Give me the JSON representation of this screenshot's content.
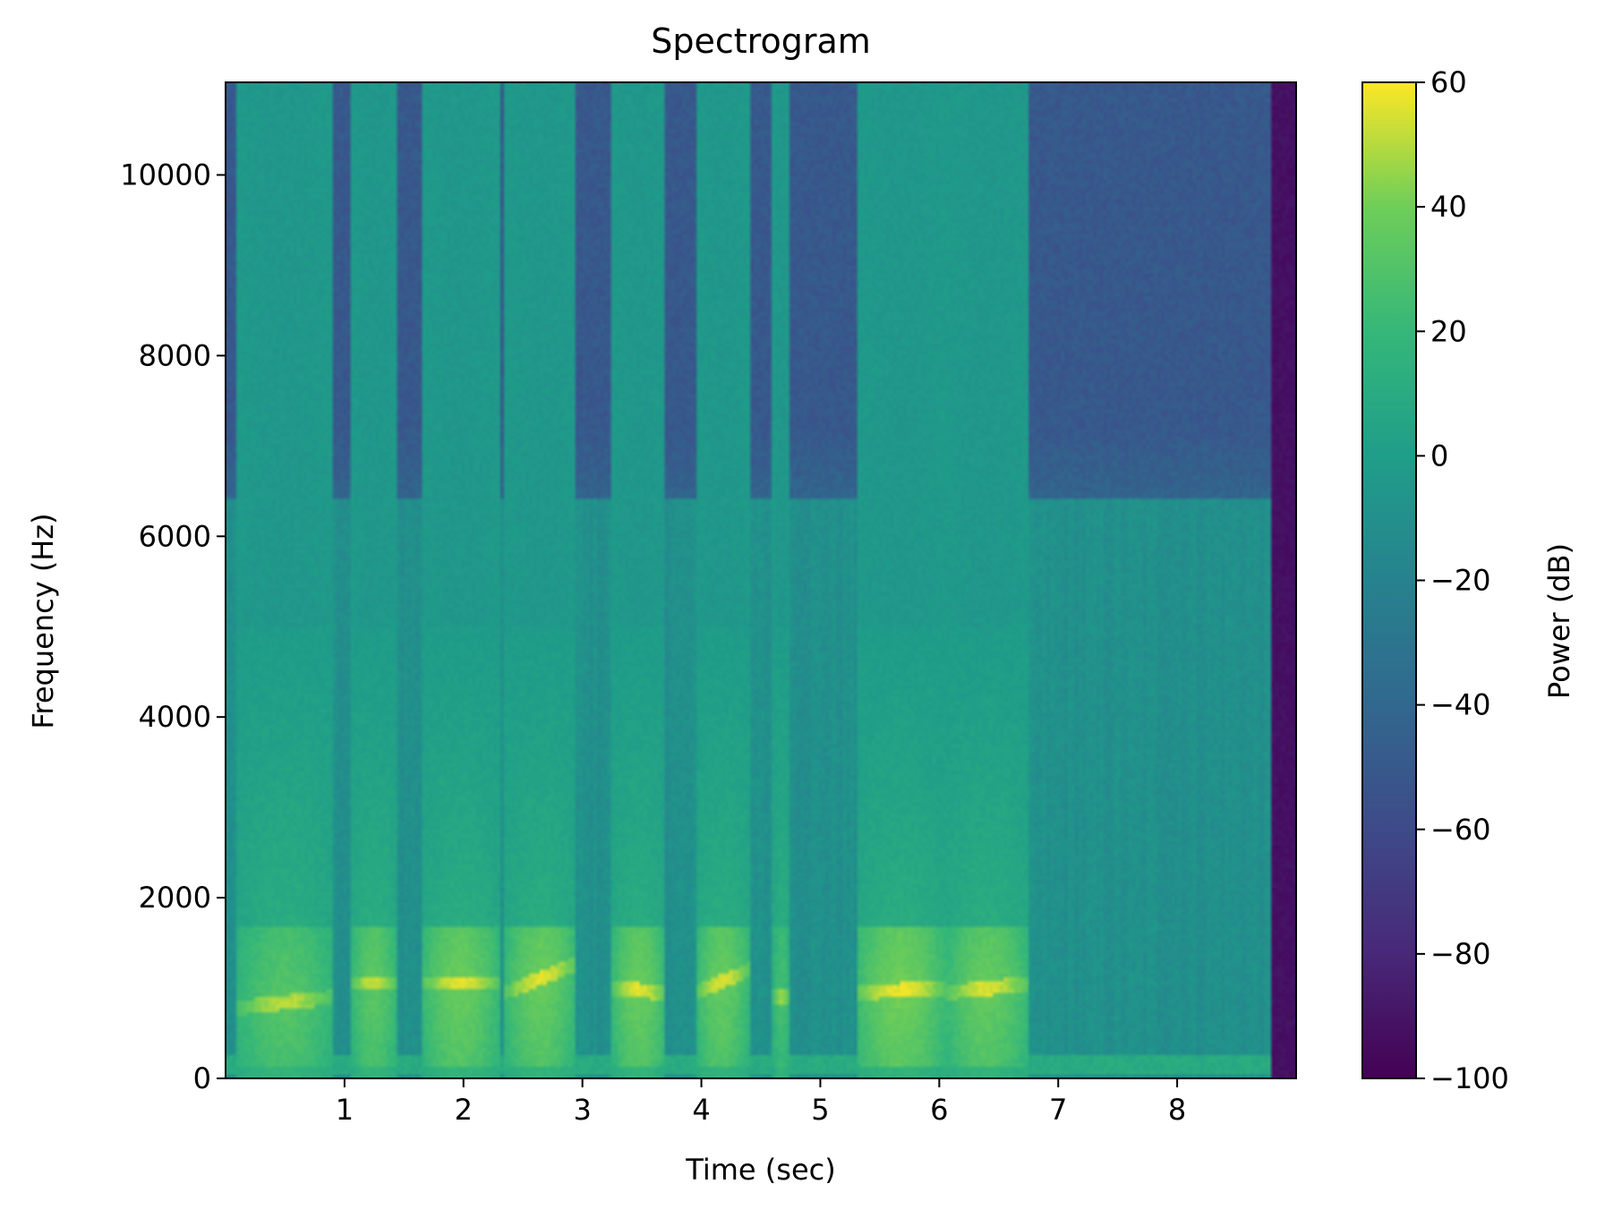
{
  "chart_data": {
    "type": "heatmap",
    "title": "Spectrogram",
    "xlabel": "Time (sec)",
    "ylabel": "Frequency (Hz)",
    "xlim": [
      0,
      9.0
    ],
    "ylim": [
      0,
      11025
    ],
    "xticks": [
      1,
      2,
      3,
      4,
      5,
      6,
      7,
      8
    ],
    "yticks": [
      0,
      2000,
      4000,
      6000,
      8000,
      10000
    ],
    "colorbar": {
      "label": "Power (dB)",
      "range": [
        -100,
        60
      ],
      "ticks": [
        60,
        40,
        20,
        0,
        -20,
        -40,
        -60,
        -80,
        -100
      ],
      "tick_labels": [
        "60",
        "40",
        "20",
        "0",
        "−20",
        "−40",
        "−60",
        "−80",
        "−100"
      ],
      "colormap": "viridis"
    },
    "levels_db": {
      "high_freq_background": -50,
      "mid_band_background": -10,
      "mid_band_top_hz": 6400,
      "end_of_signal_sec": 8.78,
      "low_hum_band_hz": [
        50,
        250
      ],
      "low_hum_db": 10
    },
    "voiced_segments": [
      {
        "t0": 0.1,
        "t1": 0.9,
        "f0_start": 780,
        "f0_end": 900,
        "peak_db": 50
      },
      {
        "t0": 1.05,
        "t1": 1.45,
        "f0_start": 1050,
        "f0_end": 1050,
        "peak_db": 52
      },
      {
        "t0": 1.65,
        "t1": 2.3,
        "f0_start": 1050,
        "f0_end": 1050,
        "peak_db": 56
      },
      {
        "t0": 2.35,
        "t1": 2.95,
        "f0_start": 950,
        "f0_end": 1270,
        "peak_db": 56
      },
      {
        "t0": 3.25,
        "t1": 3.7,
        "f0_start": 1000,
        "f0_end": 950,
        "peak_db": 56
      },
      {
        "t0": 3.95,
        "t1": 4.4,
        "f0_start": 950,
        "f0_end": 1200,
        "peak_db": 55
      },
      {
        "t0": 4.6,
        "t1": 4.75,
        "f0_start": 900,
        "f0_end": 900,
        "peak_db": 45
      },
      {
        "t0": 5.3,
        "t1": 6.05,
        "f0_start": 950,
        "f0_end": 1000,
        "peak_db": 58
      },
      {
        "t0": 6.05,
        "t1": 6.75,
        "f0_start": 950,
        "f0_end": 1050,
        "peak_db": 55
      }
    ]
  }
}
